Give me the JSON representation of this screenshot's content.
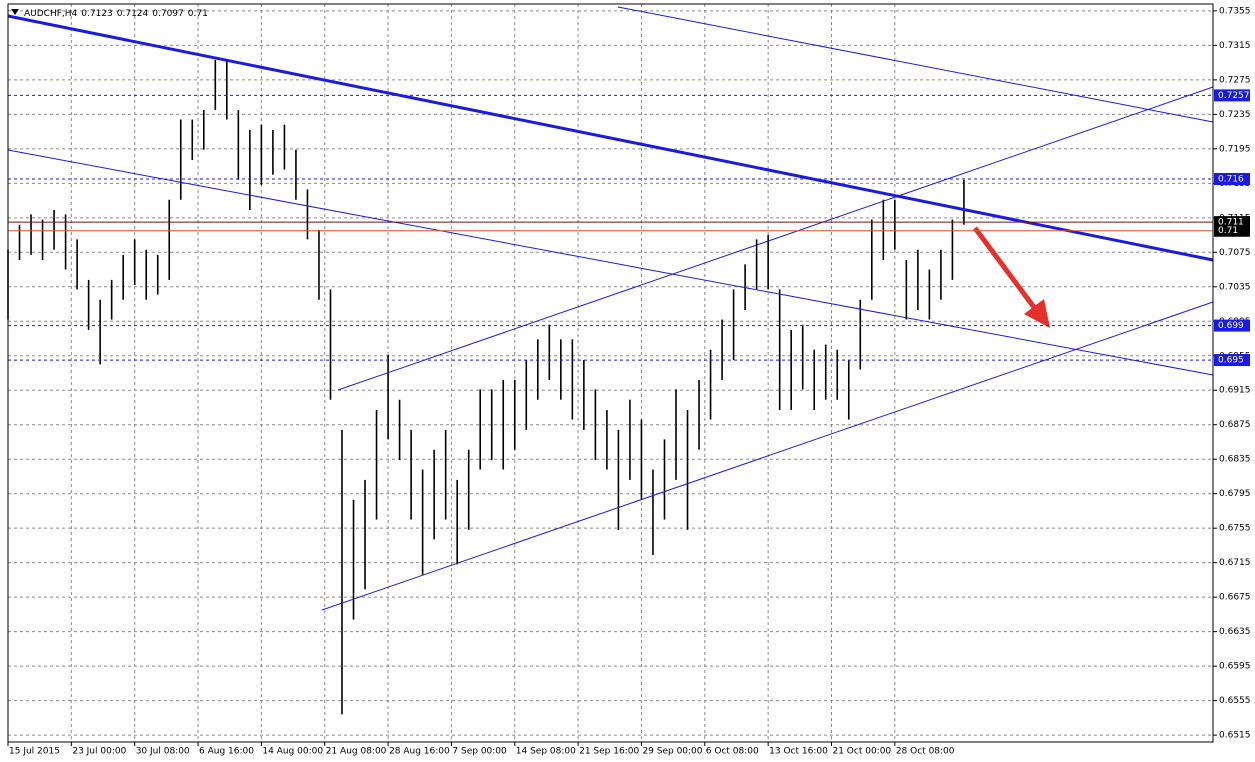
{
  "chart_data": {
    "type": "range",
    "symbol": "AUDCHF,H4",
    "quote": [
      0.7123,
      0.7124,
      0.7097,
      0.71
    ],
    "x": [
      0,
      8,
      16,
      24,
      32,
      40,
      48,
      56,
      64,
      72,
      80,
      88,
      96,
      104,
      112,
      120,
      128,
      136,
      144,
      152,
      160,
      168,
      176,
      184,
      192,
      200,
      208,
      216,
      224,
      232,
      240,
      248,
      256,
      264,
      272,
      280,
      288,
      296,
      304,
      312,
      320,
      328,
      336,
      344,
      352,
      360,
      368,
      376,
      384,
      392,
      400,
      408,
      416,
      424,
      432,
      440,
      448,
      456,
      464,
      472,
      480,
      488,
      496,
      504,
      512,
      520,
      528,
      536,
      544,
      552,
      560,
      568,
      576,
      584,
      592,
      600,
      608,
      616,
      624,
      632,
      640,
      648,
      656,
      664
    ],
    "high": [
      0.7078,
      0.7107,
      0.7119,
      0.7113,
      0.7124,
      0.7119,
      0.709,
      0.7043,
      0.702,
      0.7043,
      0.7072,
      0.709,
      0.7078,
      0.7072,
      0.7136,
      0.7229,
      0.7229,
      0.724,
      0.7298,
      0.7298,
      0.724,
      0.7217,
      0.7223,
      0.7217,
      0.7223,
      0.7194,
      0.7148,
      0.7101,
      0.7032,
      0.6869,
      0.6788,
      0.6811,
      0.6892,
      0.6956,
      0.6904,
      0.6869,
      0.6823,
      0.6846,
      0.6869,
      0.6811,
      0.6846,
      0.6916,
      0.6916,
      0.6927,
      0.6927,
      0.695,
      0.6974,
      0.6991,
      0.6974,
      0.6974,
      0.695,
      0.6916,
      0.6892,
      0.6869,
      0.6904,
      0.6881,
      0.6823,
      0.6858,
      0.6916,
      0.6892,
      0.6927,
      0.6962,
      0.6997,
      0.7032,
      0.7061,
      0.709,
      0.7095,
      0.7032,
      0.6985,
      0.6991,
      0.6962,
      0.6968,
      0.6962,
      0.695,
      0.702,
      0.7113,
      0.7136,
      0.7136,
      0.7066,
      0.7078,
      0.7055,
      0.7078,
      0.7113,
      0.7159
    ],
    "low": [
      0.6997,
      0.7066,
      0.7072,
      0.7066,
      0.7078,
      0.7055,
      0.7032,
      0.6985,
      0.6945,
      0.6997,
      0.702,
      0.7037,
      0.702,
      0.7026,
      0.7043,
      0.7136,
      0.7182,
      0.7194,
      0.724,
      0.7229,
      0.7159,
      0.7124,
      0.7153,
      0.7165,
      0.7171,
      0.7136,
      0.709,
      0.702,
      0.6904,
      0.6539,
      0.6649,
      0.6684,
      0.6765,
      0.6858,
      0.6834,
      0.6765,
      0.6701,
      0.6742,
      0.6765,
      0.6713,
      0.6753,
      0.6823,
      0.6834,
      0.6823,
      0.6846,
      0.6869,
      0.6904,
      0.6927,
      0.6904,
      0.6881,
      0.6869,
      0.6834,
      0.6823,
      0.6753,
      0.6811,
      0.6788,
      0.6724,
      0.6765,
      0.6811,
      0.6753,
      0.6846,
      0.6881,
      0.6927,
      0.695,
      0.7008,
      0.7032,
      0.7032,
      0.6892,
      0.6892,
      0.6916,
      0.6892,
      0.6904,
      0.6904,
      0.6881,
      0.6939,
      0.702,
      0.7066,
      0.7078,
      0.6997,
      0.7008,
      0.6997,
      0.702,
      0.7043,
      0.7107
    ],
    "color": "#000000",
    "xlim": [
      0,
      837
    ],
    "xticks": [
      {
        "value": 0,
        "label": "15 Jul 2015"
      },
      {
        "value": 44,
        "label": "23 Jul 00:00"
      },
      {
        "value": 88,
        "label": "30 Jul 08:00"
      },
      {
        "value": 132,
        "label": "6 Aug 16:00"
      },
      {
        "value": 176,
        "label": "14 Aug 00:00"
      },
      {
        "value": 220,
        "label": "21 Aug 08:00"
      },
      {
        "value": 264,
        "label": "28 Aug 16:00"
      },
      {
        "value": 308,
        "label": "7 Sep 00:00"
      },
      {
        "value": 352,
        "label": "14 Sep 08:00"
      },
      {
        "value": 396,
        "label": "21 Sep 16:00"
      },
      {
        "value": 440,
        "label": "29 Sep 00:00"
      },
      {
        "value": 484,
        "label": "6 Oct 08:00"
      },
      {
        "value": 528,
        "label": "13 Oct 16:00"
      },
      {
        "value": 572,
        "label": "21 Oct 00:00"
      },
      {
        "value": 616,
        "label": "28 Oct 08:00"
      }
    ],
    "ylim": [
      0.6507,
      0.7363
    ],
    "yticks": [
      0.7355,
      0.7315,
      0.7275,
      0.7235,
      0.7195,
      0.7155,
      0.7115,
      0.7075,
      0.7035,
      0.6995,
      0.6955,
      0.6915,
      0.6875,
      0.6835,
      0.6795,
      0.6755,
      0.6715,
      0.6675,
      0.6635,
      0.6595,
      0.6555,
      0.6515
    ],
    "grid": true,
    "levels": [
      {
        "value": 0.7257,
        "color": "#1a1ae6"
      },
      {
        "value": 0.716,
        "color": "#1a1ae6"
      },
      {
        "value": 0.711,
        "color": "#7a1010"
      },
      {
        "value": 0.71,
        "color": "#e8501e"
      },
      {
        "value": 0.699,
        "color": "#1a1ae6"
      },
      {
        "value": 0.695,
        "color": "#1a1ae6"
      }
    ]
  }
}
